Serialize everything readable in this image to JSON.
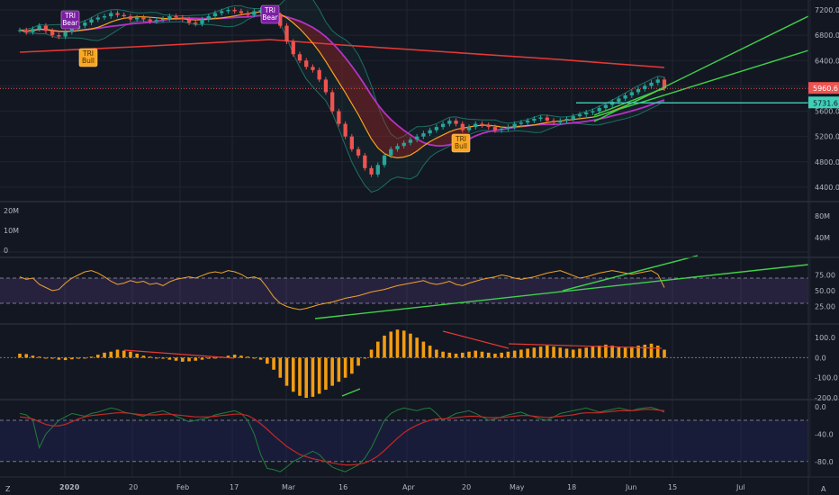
{
  "colors": {
    "background": "#131722",
    "grid": "#1f2431",
    "up": "#26a69a",
    "down": "#ef5350",
    "ma_red": "#e53935",
    "ma_orange": "#f7a21b",
    "ma_magenta": "#b532c4",
    "bb_teal": "#1f6f63",
    "trend_green": "#3fd14a",
    "hline_teal": "#3fd1b8",
    "rsi": "#f0a22a",
    "macd_hist": "#f39c12",
    "osc_green": "#1e7f3a",
    "osc_red": "#c62828"
  },
  "x_axis": {
    "labels": [
      "2020",
      "20",
      "Feb",
      "17",
      "Mar",
      "16",
      "Apr",
      "20",
      "May",
      "18",
      "Jun",
      "15",
      "Jul",
      "A"
    ]
  },
  "price_axis": {
    "ticks": [
      "7200.0",
      "6800.0",
      "6400.0",
      "6000.0",
      "5600.0",
      "5200.0",
      "4800.0",
      "4400.0"
    ],
    "current_price": "5960.6",
    "horizontal_level": "5731.6"
  },
  "volume_axis": {
    "left_ticks": [
      "20M",
      "10M",
      "0"
    ],
    "right_ticks": [
      "80M",
      "40M"
    ]
  },
  "rsi_axis": {
    "ticks": [
      "75.00",
      "50.00",
      "25.00"
    ]
  },
  "macd_axis": {
    "ticks": [
      "100.0",
      "0.0",
      "-100.0",
      "-200.0"
    ]
  },
  "osc_axis": {
    "ticks": [
      "0.0",
      "-40.0",
      "-80.0"
    ]
  },
  "badges": [
    {
      "text_line1": "TRI",
      "text_line2": "Bear",
      "kind": "bear"
    },
    {
      "text_line1": "TRI",
      "text_line2": "Bull",
      "kind": "bull"
    },
    {
      "text_line1": "TRI",
      "text_line2": "Bear",
      "kind": "bear"
    },
    {
      "text_line1": "TRI",
      "text_line2": "Bull",
      "kind": "bull"
    }
  ],
  "footer": {
    "left_icon": "Z",
    "right_icon": "A"
  },
  "chart_data": [
    {
      "type": "candlestick",
      "title": "",
      "ylim": [
        4200,
        7300
      ],
      "price_path": [
        6880,
        6850,
        6900,
        6950,
        6870,
        6800,
        6780,
        6850,
        6900,
        6950,
        7000,
        7050,
        7080,
        7100,
        7150,
        7120,
        7100,
        7050,
        7080,
        7050,
        7020,
        7040,
        7060,
        7100,
        7080,
        7050,
        7000,
        6980,
        7050,
        7100,
        7150,
        7180,
        7200,
        7180,
        7150,
        7120,
        7180,
        7200,
        7180,
        7120,
        6950,
        6700,
        6500,
        6400,
        6300,
        6250,
        6100,
        5900,
        5600,
        5400,
        5200,
        5000,
        4900,
        4700,
        4600,
        4750,
        4900,
        5000,
        5050,
        5100,
        5150,
        5200,
        5250,
        5300,
        5350,
        5400,
        5450,
        5400,
        5300,
        5350,
        5400,
        5380,
        5350,
        5300,
        5320,
        5350,
        5400,
        5420,
        5450,
        5480,
        5500,
        5450,
        5420,
        5450,
        5480,
        5520,
        5550,
        5580,
        5600,
        5650,
        5700,
        5750,
        5800,
        5850,
        5900,
        5950,
        6000,
        6050,
        6100,
        5960
      ]
    },
    {
      "type": "line",
      "name": "RSI",
      "ylim": [
        0,
        100
      ],
      "values": [
        72,
        68,
        70,
        60,
        55,
        50,
        52,
        62,
        70,
        75,
        80,
        82,
        78,
        72,
        65,
        60,
        62,
        66,
        63,
        65,
        60,
        62,
        58,
        64,
        68,
        70,
        72,
        70,
        74,
        78,
        80,
        78,
        82,
        80,
        76,
        70,
        72,
        68,
        55,
        40,
        30,
        25,
        22,
        20,
        22,
        25,
        28,
        30,
        32,
        35,
        38,
        40,
        42,
        45,
        48,
        50,
        52,
        55,
        58,
        60,
        62,
        64,
        66,
        62,
        60,
        62,
        65,
        60,
        58,
        62,
        65,
        68,
        70,
        72,
        75,
        73,
        70,
        68,
        70,
        72,
        75,
        78,
        80,
        82,
        78,
        74,
        70,
        72,
        75,
        78,
        80,
        82,
        80,
        78,
        76,
        78,
        80,
        82,
        76,
        55
      ]
    },
    {
      "type": "bar",
      "name": "MACD Histogram",
      "ylim": [
        -200,
        150
      ],
      "values": [
        20,
        18,
        10,
        5,
        0,
        -5,
        -10,
        -12,
        -8,
        -5,
        0,
        5,
        15,
        25,
        30,
        40,
        35,
        30,
        20,
        10,
        5,
        0,
        -5,
        -10,
        -15,
        -20,
        -18,
        -15,
        -10,
        -5,
        0,
        5,
        10,
        15,
        10,
        5,
        0,
        -10,
        -30,
        -60,
        -100,
        -140,
        -170,
        -190,
        -200,
        -195,
        -180,
        -160,
        -140,
        -120,
        -100,
        -80,
        -40,
        0,
        40,
        80,
        110,
        130,
        140,
        135,
        120,
        100,
        80,
        60,
        40,
        30,
        25,
        20,
        25,
        30,
        35,
        30,
        25,
        20,
        25,
        30,
        35,
        40,
        45,
        50,
        55,
        60,
        55,
        50,
        45,
        40,
        45,
        50,
        55,
        60,
        65,
        60,
        55,
        50,
        55,
        60,
        65,
        70,
        60,
        40
      ]
    },
    {
      "type": "line",
      "name": "Oscillator",
      "ylim": [
        -100,
        5
      ],
      "series_a": [
        -10,
        -12,
        -20,
        -60,
        -40,
        -30,
        -20,
        -15,
        -10,
        -12,
        -14,
        -10,
        -8,
        -5,
        -2,
        -4,
        -8,
        -10,
        -12,
        -14,
        -10,
        -8,
        -6,
        -10,
        -14,
        -18,
        -22,
        -20,
        -18,
        -16,
        -12,
        -10,
        -8,
        -6,
        -10,
        -20,
        -40,
        -70,
        -90,
        -92,
        -95,
        -88,
        -80,
        -75,
        -70,
        -65,
        -70,
        -80,
        -88,
        -92,
        -95,
        -90,
        -85,
        -75,
        -60,
        -40,
        -20,
        -10,
        -5,
        -2,
        -4,
        -6,
        -3,
        -2,
        -10,
        -20,
        -15,
        -10,
        -8,
        -6,
        -10,
        -15,
        -20,
        -18,
        -15,
        -12,
        -10,
        -8,
        -12,
        -15,
        -18,
        -20,
        -15,
        -10,
        -8,
        -6,
        -4,
        -2,
        -5,
        -8,
        -6,
        -4,
        -2,
        -4,
        -6,
        -3,
        -2,
        -1,
        -4,
        -8
      ],
      "series_b": [
        -15,
        -16,
        -18,
        -22,
        -26,
        -28,
        -28,
        -26,
        -22,
        -18,
        -15,
        -13,
        -12,
        -11,
        -10,
        -9,
        -9,
        -10,
        -11,
        -12,
        -12,
        -12,
        -11,
        -11,
        -12,
        -13,
        -14,
        -15,
        -15,
        -15,
        -14,
        -13,
        -12,
        -11,
        -11,
        -13,
        -18,
        -25,
        -33,
        -42,
        -50,
        -58,
        -64,
        -70,
        -73,
        -76,
        -78,
        -80,
        -82,
        -84,
        -85,
        -85,
        -84,
        -82,
        -78,
        -72,
        -64,
        -55,
        -46,
        -38,
        -32,
        -27,
        -23,
        -20,
        -18,
        -18,
        -17,
        -16,
        -15,
        -14,
        -14,
        -15,
        -16,
        -16,
        -16,
        -15,
        -14,
        -13,
        -13,
        -14,
        -15,
        -16,
        -15,
        -14,
        -13,
        -12,
        -10,
        -9,
        -9,
        -9,
        -8,
        -7,
        -6,
        -6,
        -6,
        -5,
        -4,
        -4,
        -5,
        -6
      ]
    }
  ]
}
